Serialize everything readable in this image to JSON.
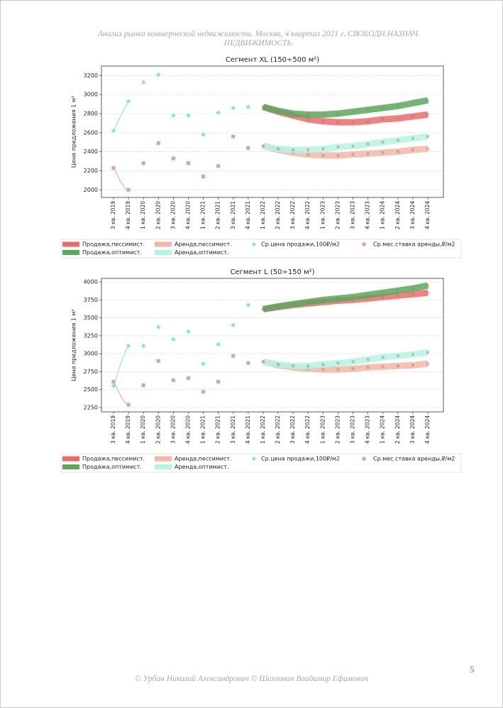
{
  "header": {
    "title": "Анализ рынка коммерческой недвижимости.  Москва,  4 квартал 2021 г.  СВОБОДН.НАЗНАЧ. НЕДВИЖИМОСТЬ."
  },
  "chart_data": [
    {
      "type": "line",
      "title": "Сегмент XL (150÷500 м²)",
      "ylabel": "Цена предложения 1 м²",
      "categories": [
        "3 кв. 2019",
        "4 кв. 2019",
        "1 кв. 2020",
        "2 кв. 2020",
        "3 кв. 2020",
        "4 кв. 2020",
        "1 кв. 2021",
        "2 кв. 2021",
        "3 кв. 2021",
        "4 кв. 2021",
        "1 кв. 2022",
        "2 кв. 2022",
        "3 кв. 2022",
        "4 кв. 2022",
        "1 кв. 2023",
        "2 кв. 2023",
        "3 кв. 2023",
        "4 кв. 2023",
        "1 кв. 2024",
        "2 кв. 2024",
        "3 кв. 2024",
        "4 кв. 2024"
      ],
      "ylim": [
        1920,
        3300
      ],
      "yticks": [
        2000,
        2200,
        2400,
        2600,
        2800,
        3000,
        3200
      ],
      "grid": true,
      "series": [
        {
          "name": "Продажа,пессимист.",
          "color": "#ee6a6a",
          "linewidth": 9,
          "values": [
            null,
            null,
            null,
            null,
            null,
            null,
            null,
            null,
            null,
            null,
            2870,
            2820,
            2780,
            2740,
            2720,
            2710,
            2710,
            2720,
            2740,
            2750,
            2770,
            2790
          ]
        },
        {
          "name": "Продажа,оптимист.",
          "color": "#5aa95a",
          "linewidth": 9,
          "values": [
            null,
            null,
            null,
            null,
            null,
            null,
            null,
            null,
            null,
            null,
            2870,
            2830,
            2800,
            2790,
            2790,
            2800,
            2820,
            2840,
            2860,
            2880,
            2910,
            2940
          ]
        },
        {
          "name": "Аренда,пессимист.",
          "color": "#f6b6a6",
          "linewidth": 9,
          "values": [
            null,
            null,
            null,
            null,
            null,
            null,
            null,
            null,
            null,
            null,
            2460,
            2420,
            2390,
            2370,
            2360,
            2360,
            2370,
            2380,
            2390,
            2400,
            2420,
            2430
          ]
        },
        {
          "name": "Аренда,оптимист.",
          "color": "#b6f4e2",
          "linewidth": 9,
          "values": [
            null,
            null,
            null,
            null,
            null,
            null,
            null,
            null,
            null,
            null,
            2460,
            2430,
            2420,
            2420,
            2430,
            2450,
            2460,
            2480,
            2500,
            2520,
            2540,
            2560
          ]
        },
        {
          "name": "Ср.цена продажи,100₽/м2",
          "color": "#7ee8d0",
          "marker": "diamond",
          "values": [
            2620,
            2930,
            3130,
            3210,
            2780,
            2780,
            2580,
            2810,
            2860,
            2870,
            null,
            null,
            null,
            null,
            null,
            null,
            null,
            null,
            null,
            null,
            null,
            null
          ]
        },
        {
          "name": "Ср.мес.ставка аренды,₽/м2",
          "color": "#d69ad6",
          "marker": "square",
          "values": [
            2230,
            2000,
            2280,
            2490,
            2330,
            2280,
            2140,
            2250,
            2560,
            2440,
            null,
            null,
            null,
            null,
            null,
            null,
            null,
            null,
            null,
            null,
            null,
            null
          ]
        }
      ]
    },
    {
      "type": "line",
      "title": "Сегмент L (50÷150 м²)",
      "ylabel": "Цена предложения 1 м²",
      "categories": [
        "3 кв. 2019",
        "4 кв. 2019",
        "1 кв. 2020",
        "2 кв. 2020",
        "3 кв. 2020",
        "4 кв. 2020",
        "1 кв. 2021",
        "2 кв. 2021",
        "3 кв. 2021",
        "4 кв. 2021",
        "1 кв. 2022",
        "2 кв. 2022",
        "3 кв. 2022",
        "4 кв. 2022",
        "1 кв. 2023",
        "2 кв. 2023",
        "3 кв. 2023",
        "4 кв. 2023",
        "1 кв. 2024",
        "2 кв. 2024",
        "3 кв. 2024",
        "4 кв. 2024"
      ],
      "ylim": [
        2190,
        4050
      ],
      "yticks": [
        2250,
        2500,
        2750,
        3000,
        3250,
        3500,
        3750,
        4000
      ],
      "grid": true,
      "series": [
        {
          "name": "Продажа,пессимист.",
          "color": "#ee6a6a",
          "linewidth": 9,
          "values": [
            null,
            null,
            null,
            null,
            null,
            null,
            null,
            null,
            null,
            null,
            3620,
            3650,
            3680,
            3700,
            3720,
            3740,
            3750,
            3770,
            3790,
            3810,
            3830,
            3850
          ]
        },
        {
          "name": "Продажа,оптимист.",
          "color": "#5aa95a",
          "linewidth": 9,
          "values": [
            null,
            null,
            null,
            null,
            null,
            null,
            null,
            null,
            null,
            null,
            3620,
            3660,
            3690,
            3720,
            3750,
            3770,
            3790,
            3820,
            3850,
            3880,
            3910,
            3950
          ]
        },
        {
          "name": "Аренда,пессимист.",
          "color": "#f6b6a6",
          "linewidth": 9,
          "values": [
            null,
            null,
            null,
            null,
            null,
            null,
            null,
            null,
            null,
            null,
            2890,
            2840,
            2810,
            2790,
            2780,
            2780,
            2790,
            2810,
            2820,
            2830,
            2840,
            2860
          ]
        },
        {
          "name": "Аренда,оптимист.",
          "color": "#b6f4e2",
          "linewidth": 9,
          "values": [
            null,
            null,
            null,
            null,
            null,
            null,
            null,
            null,
            null,
            null,
            2890,
            2850,
            2830,
            2830,
            2850,
            2870,
            2890,
            2920,
            2950,
            2970,
            2990,
            3020
          ]
        },
        {
          "name": "Ср.цена продажи,100₽/м2",
          "color": "#7ee8d0",
          "marker": "diamond",
          "values": [
            2550,
            3110,
            3110,
            3370,
            3200,
            3310,
            2860,
            3130,
            3400,
            3680,
            null,
            null,
            null,
            null,
            null,
            null,
            null,
            null,
            null,
            null,
            null,
            null
          ]
        },
        {
          "name": "Ср.мес.ставка аренды,₽/м2",
          "color": "#d69ad6",
          "marker": "square",
          "values": [
            2610,
            2290,
            2560,
            2900,
            2630,
            2660,
            2470,
            2610,
            2970,
            2870,
            null,
            null,
            null,
            null,
            null,
            null,
            null,
            null,
            null,
            null,
            null,
            null
          ]
        }
      ]
    }
  ],
  "footer": {
    "text": "© Урбан Николай Александрович   © Шехтман Владимир Ефимович",
    "page_number": "5"
  }
}
